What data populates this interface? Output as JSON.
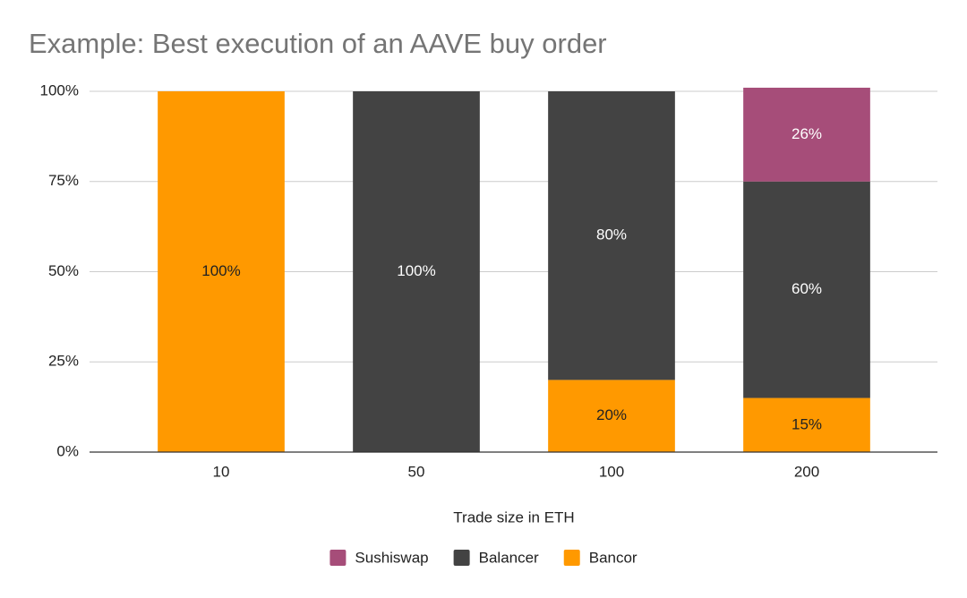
{
  "chart_data": {
    "type": "stacked_bar",
    "title": "Example: Best execution of an AAVE buy order",
    "x_label": "Trade size in ETH",
    "categories": [
      "10",
      "50",
      "100",
      "200"
    ],
    "series": [
      {
        "name": "Sushiswap",
        "color": "#a64d79",
        "values": [
          0,
          0,
          0,
          26
        ],
        "value_labels": [
          null,
          null,
          null,
          "26%"
        ]
      },
      {
        "name": "Balancer",
        "color": "#434343",
        "values": [
          0,
          100,
          80,
          60
        ],
        "value_labels": [
          null,
          "100%",
          "80%",
          "60%"
        ]
      },
      {
        "name": "Bancor",
        "color": "#ff9900",
        "values": [
          100,
          0,
          20,
          15
        ],
        "value_labels": [
          "100%",
          null,
          "20%",
          "15%"
        ]
      }
    ],
    "ylim": [
      0,
      100
    ],
    "yticks": [
      {
        "value": 0,
        "label": "0%"
      },
      {
        "value": 25,
        "label": "25%"
      },
      {
        "value": 50,
        "label": "50%"
      },
      {
        "value": 75,
        "label": "75%"
      },
      {
        "value": 100,
        "label": "100%"
      }
    ],
    "grid": true,
    "legend": "bottom"
  }
}
